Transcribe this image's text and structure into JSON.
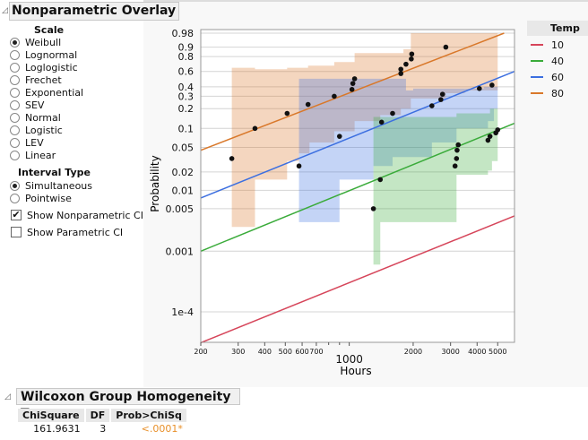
{
  "title": "Nonparametric Overlay",
  "scale": {
    "label": "Scale",
    "options": [
      "Weibull",
      "Lognormal",
      "Loglogistic",
      "Frechet",
      "Exponential",
      "SEV",
      "Normal",
      "Logistic",
      "LEV",
      "Linear"
    ],
    "selected": "Weibull"
  },
  "interval": {
    "label": "Interval Type",
    "options": [
      "Simultaneous",
      "Pointwise"
    ],
    "selected": "Simultaneous"
  },
  "checks": [
    {
      "label": "Show Nonparametric CI",
      "checked": true
    },
    {
      "label": "Show Parametric CI",
      "checked": false
    }
  ],
  "legend": {
    "title": "Temp",
    "items": [
      {
        "label": "10",
        "color": "#d6455a"
      },
      {
        "label": "40",
        "color": "#3aab3a"
      },
      {
        "label": "60",
        "color": "#3c6fe0"
      },
      {
        "label": "80",
        "color": "#d9782a"
      }
    ]
  },
  "chart_data": {
    "type": "line",
    "scale": "Weibull probability",
    "xscale": "log",
    "xlabel": "Hours",
    "ylabel": "Probability",
    "xlim": [
      200,
      6000
    ],
    "ylim": [
      3e-05,
      0.98
    ],
    "xticks": [
      "200",
      "300",
      "400",
      "500",
      "600",
      "700",
      "1000",
      "2000",
      "3000",
      "4000",
      "5000"
    ],
    "yticks": [
      "0.98",
      "0.9",
      "0.8",
      "0.6",
      "0.4",
      "0.3",
      "0.2",
      "0.1",
      "0.05",
      "0.02",
      "0.01",
      "0.005",
      "0.001",
      "1e-4"
    ],
    "fits": [
      {
        "name": "10",
        "color": "#d6455a",
        "points": [
          [
            200,
            3.1e-05
          ],
          [
            6000,
            0.0038
          ]
        ]
      },
      {
        "name": "40",
        "color": "#3aab3a",
        "points": [
          [
            200,
            0.001
          ],
          [
            6000,
            0.12
          ]
        ]
      },
      {
        "name": "60",
        "color": "#3c6fe0",
        "points": [
          [
            200,
            0.0075
          ],
          [
            6000,
            0.6
          ]
        ]
      },
      {
        "name": "80",
        "color": "#d9782a",
        "points": [
          [
            200,
            0.045
          ],
          [
            5360,
            0.98
          ]
        ]
      }
    ],
    "bands": [
      {
        "name": "80",
        "color": "#d9782a",
        "end": 5000,
        "upper": [
          [
            280,
            0.65
          ],
          [
            360,
            0.63
          ],
          [
            510,
            0.65
          ],
          [
            640,
            0.68
          ],
          [
            850,
            0.73
          ],
          [
            1060,
            0.84
          ],
          [
            1800,
            0.88
          ],
          [
            1950,
            0.98
          ]
        ],
        "lower": [
          [
            280,
            0.0025
          ],
          [
            360,
            0.015
          ],
          [
            510,
            0.03
          ],
          [
            580,
            0.04
          ],
          [
            650,
            0.06
          ],
          [
            850,
            0.09
          ],
          [
            1060,
            0.13
          ],
          [
            1400,
            0.16
          ],
          [
            1750,
            0.2
          ],
          [
            1950,
            0.28
          ],
          [
            2850,
            0.33
          ],
          [
            3500,
            0.36
          ]
        ]
      },
      {
        "name": "60",
        "color": "#3c6fe0",
        "end": 5000,
        "upper": [
          [
            580,
            0.5
          ],
          [
            1850,
            0.36
          ],
          [
            2000,
            0.38
          ],
          [
            4300,
            0.4
          ]
        ],
        "lower": [
          [
            580,
            0.003
          ],
          [
            900,
            0.015
          ],
          [
            1300,
            0.025
          ],
          [
            1600,
            0.035
          ],
          [
            2450,
            0.06
          ],
          [
            3200,
            0.1
          ],
          [
            4500,
            0.13
          ],
          [
            4800,
            0.2
          ]
        ]
      },
      {
        "name": "40",
        "color": "#3aab3a",
        "end": 5000,
        "upper": [
          [
            1300,
            0.15
          ],
          [
            3200,
            0.17
          ],
          [
            4600,
            0.2
          ]
        ],
        "lower": [
          [
            1300,
            0.0006
          ],
          [
            1400,
            0.003
          ],
          [
            3200,
            0.018
          ],
          [
            4500,
            0.021
          ],
          [
            4700,
            0.03
          ]
        ]
      }
    ],
    "points": [
      [
        280,
        0.033
      ],
      [
        360,
        0.1
      ],
      [
        510,
        0.17
      ],
      [
        640,
        0.23
      ],
      [
        850,
        0.3
      ],
      [
        1030,
        0.37
      ],
      [
        1040,
        0.44
      ],
      [
        1060,
        0.5
      ],
      [
        1750,
        0.57
      ],
      [
        1750,
        0.63
      ],
      [
        1850,
        0.7
      ],
      [
        1960,
        0.77
      ],
      [
        1970,
        0.83
      ],
      [
        2850,
        0.9
      ],
      [
        580,
        0.025
      ],
      [
        900,
        0.075
      ],
      [
        1420,
        0.125
      ],
      [
        1600,
        0.17
      ],
      [
        2450,
        0.22
      ],
      [
        2700,
        0.27
      ],
      [
        2750,
        0.32
      ],
      [
        4100,
        0.38
      ],
      [
        4700,
        0.42
      ],
      [
        1300,
        0.005
      ],
      [
        1400,
        0.015
      ],
      [
        3150,
        0.025
      ],
      [
        3200,
        0.033
      ],
      [
        3220,
        0.045
      ],
      [
        3260,
        0.055
      ],
      [
        4500,
        0.065
      ],
      [
        4600,
        0.075
      ],
      [
        4900,
        0.085
      ],
      [
        5000,
        0.095
      ]
    ]
  },
  "wilcoxon": {
    "title": "Wilcoxon Group Homogeneity Test",
    "headers": [
      "ChiSquare",
      "DF",
      "Prob>ChiSq"
    ],
    "values": [
      "161.9631",
      "3",
      "<.0001*"
    ],
    "sig_color": "#e8902a"
  }
}
